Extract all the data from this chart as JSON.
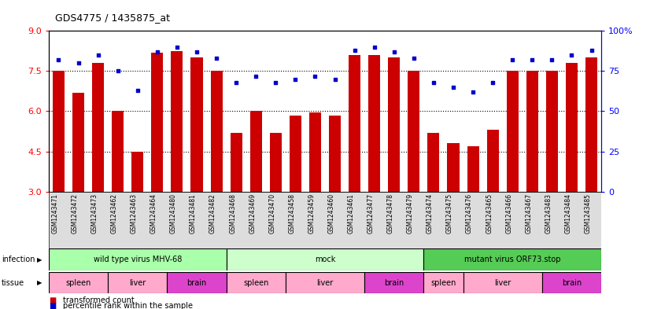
{
  "title": "GDS4775 / 1435875_at",
  "samples": [
    "GSM1243471",
    "GSM1243472",
    "GSM1243473",
    "GSM1243462",
    "GSM1243463",
    "GSM1243464",
    "GSM1243480",
    "GSM1243481",
    "GSM1243482",
    "GSM1243468",
    "GSM1243469",
    "GSM1243470",
    "GSM1243458",
    "GSM1243459",
    "GSM1243460",
    "GSM1243461",
    "GSM1243477",
    "GSM1243478",
    "GSM1243479",
    "GSM1243474",
    "GSM1243475",
    "GSM1243476",
    "GSM1243465",
    "GSM1243466",
    "GSM1243467",
    "GSM1243483",
    "GSM1243484",
    "GSM1243485"
  ],
  "bar_values": [
    7.5,
    6.7,
    7.8,
    6.0,
    4.5,
    8.2,
    8.25,
    8.0,
    7.5,
    5.2,
    6.0,
    5.2,
    5.85,
    5.95,
    5.85,
    8.1,
    8.1,
    8.0,
    7.5,
    5.2,
    4.8,
    4.7,
    5.3,
    7.5,
    7.5,
    7.5,
    7.8,
    8.0
  ],
  "dot_values": [
    82,
    80,
    85,
    75,
    63,
    87,
    90,
    87,
    83,
    68,
    72,
    68,
    70,
    72,
    70,
    88,
    90,
    87,
    83,
    68,
    65,
    62,
    68,
    82,
    82,
    82,
    85,
    88
  ],
  "bar_color": "#cc0000",
  "dot_color": "#0000cc",
  "ylim_left": [
    3,
    9
  ],
  "ylim_right": [
    0,
    100
  ],
  "yticks_left": [
    3,
    4.5,
    6,
    7.5,
    9
  ],
  "yticks_right": [
    0,
    25,
    50,
    75,
    100
  ],
  "yticklabels_right": [
    "0",
    "25",
    "50",
    "75",
    "100%"
  ],
  "infection_groups": [
    {
      "label": "wild type virus MHV-68",
      "start": 0,
      "end": 9,
      "color": "#aaffaa"
    },
    {
      "label": "mock",
      "start": 9,
      "end": 19,
      "color": "#ccffcc"
    },
    {
      "label": "mutant virus ORF73.stop",
      "start": 19,
      "end": 28,
      "color": "#55cc55"
    }
  ],
  "tissue_groups": [
    {
      "label": "spleen",
      "start": 0,
      "end": 3,
      "color": "#ffaacc"
    },
    {
      "label": "liver",
      "start": 3,
      "end": 6,
      "color": "#ffaacc"
    },
    {
      "label": "brain",
      "start": 6,
      "end": 9,
      "color": "#dd44cc"
    },
    {
      "label": "spleen",
      "start": 9,
      "end": 12,
      "color": "#ffaacc"
    },
    {
      "label": "liver",
      "start": 12,
      "end": 16,
      "color": "#ffaacc"
    },
    {
      "label": "brain",
      "start": 16,
      "end": 19,
      "color": "#dd44cc"
    },
    {
      "label": "spleen",
      "start": 19,
      "end": 21,
      "color": "#ffaacc"
    },
    {
      "label": "liver",
      "start": 21,
      "end": 25,
      "color": "#ffaacc"
    },
    {
      "label": "brain",
      "start": 25,
      "end": 28,
      "color": "#dd44cc"
    }
  ],
  "legend_items": [
    {
      "label": "transformed count",
      "color": "#cc0000"
    },
    {
      "label": "percentile rank within the sample",
      "color": "#0000cc"
    }
  ],
  "dotted_yticks": [
    4.5,
    6.0,
    7.5
  ],
  "bg_color": "#ffffff",
  "sample_label_fontsize": 6,
  "bar_width": 0.6
}
